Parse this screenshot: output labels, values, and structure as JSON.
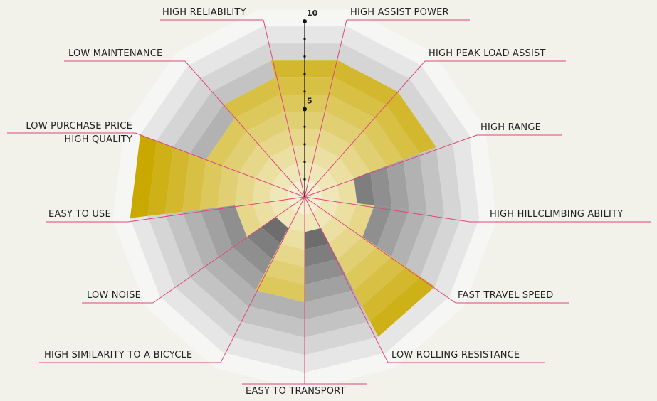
{
  "chart_data": {
    "type": "radar",
    "categories": [
      "HIGH RELIABILITY",
      "HIGH ASSIST POWER",
      "HIGH PEAK LOAD ASSIST",
      "HIGH RANGE",
      "HIGH HILLCLIMBING ABILITY",
      "FAST TRAVEL SPEED",
      "LOW ROLLING RESISTANCE",
      "EASY TO TRANSPORT",
      "HIGH SIMILARITY TO A BICYCLE",
      "LOW NOISE",
      "EASY TO USE",
      "LOW PURCHASE PRICE\nHIGH QUALITY",
      "LOW MAINTENANCE"
    ],
    "values": [
      8,
      8,
      8,
      3,
      4,
      9,
      2,
      6,
      2,
      4,
      10,
      6,
      7
    ],
    "color": "#c9a800",
    "ylim": [
      0,
      10
    ],
    "yticks": [
      5,
      10
    ]
  }
}
